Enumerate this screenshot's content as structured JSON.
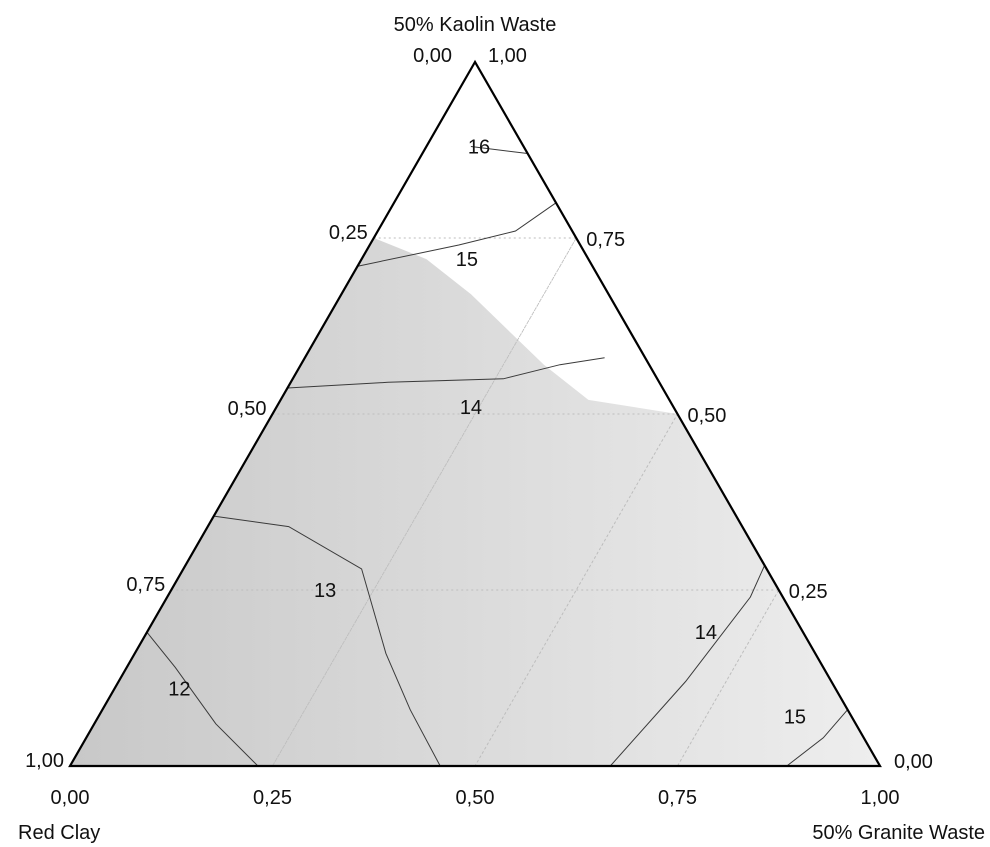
{
  "chart_data": {
    "type": "ternary-contour",
    "vertices": {
      "top": "50% Kaolin Waste",
      "left": "Red Clay",
      "right": "50% Granite Waste"
    },
    "tick_labels": [
      "0,00",
      "0,25",
      "0,50",
      "0,75",
      "1,00"
    ],
    "tick_values": [
      0,
      0.25,
      0.5,
      0.75,
      1
    ],
    "grid": true,
    "colors": {
      "shade_dark": "#c8c8c8",
      "shade_light": "#eeeeee",
      "contour": "#3a3a3a",
      "frame": "#000000",
      "grid": "#bdbdbd"
    },
    "shaded_region_boundary": [
      {
        "k": 0.75,
        "g": 0.0
      },
      {
        "k": 0.72,
        "g": 0.08
      },
      {
        "k": 0.67,
        "g": 0.16
      },
      {
        "k": 0.62,
        "g": 0.23
      },
      {
        "k": 0.57,
        "g": 0.3
      },
      {
        "k": 0.52,
        "g": 0.38
      },
      {
        "k": 0.5,
        "g": 0.5
      }
    ],
    "contours": [
      {
        "level": "16",
        "points": [
          {
            "k": 0.88,
            "g": 0.055
          },
          {
            "k": 0.87,
            "g": 0.13
          }
        ]
      },
      {
        "level": "15",
        "points": [
          {
            "k": 0.71,
            "g": 0.0
          },
          {
            "k": 0.74,
            "g": 0.11
          },
          {
            "k": 0.76,
            "g": 0.17
          },
          {
            "k": 0.8,
            "g": 0.2
          }
        ]
      },
      {
        "level": "14",
        "points": [
          {
            "k": 0.537,
            "g": 0.0
          },
          {
            "k": 0.545,
            "g": 0.12
          },
          {
            "k": 0.55,
            "g": 0.26
          },
          {
            "k": 0.57,
            "g": 0.32
          },
          {
            "k": 0.58,
            "g": 0.37
          }
        ]
      },
      {
        "level": "13",
        "points": [
          {
            "k": 0.355,
            "g": 0.0
          },
          {
            "k": 0.34,
            "g": 0.1
          },
          {
            "k": 0.28,
            "g": 0.22
          },
          {
            "k": 0.16,
            "g": 0.31
          },
          {
            "k": 0.08,
            "g": 0.38
          },
          {
            "k": 0.0,
            "g": 0.457
          }
        ]
      },
      {
        "level": "12",
        "points": [
          {
            "k": 0.19,
            "g": 0.0
          },
          {
            "k": 0.14,
            "g": 0.06
          },
          {
            "k": 0.06,
            "g": 0.15
          },
          {
            "k": 0.0,
            "g": 0.232
          }
        ]
      },
      {
        "level": "14",
        "points": [
          {
            "k": 0.0,
            "g": 0.667
          },
          {
            "k": 0.12,
            "g": 0.7
          },
          {
            "k": 0.24,
            "g": 0.72
          },
          {
            "k": 0.285,
            "g": 0.715
          }
        ]
      },
      {
        "level": "15",
        "points": [
          {
            "k": 0.0,
            "g": 0.885
          },
          {
            "k": 0.04,
            "g": 0.91
          },
          {
            "k": 0.08,
            "g": 0.92
          }
        ]
      }
    ],
    "contour_labels": [
      {
        "text": "16",
        "k": 0.88,
        "g": 0.065
      },
      {
        "text": "15",
        "k": 0.72,
        "g": 0.13
      },
      {
        "text": "14",
        "k": 0.51,
        "g": 0.24
      },
      {
        "text": "13",
        "k": 0.25,
        "g": 0.19
      },
      {
        "text": "12",
        "k": 0.11,
        "g": 0.08
      },
      {
        "text": "14",
        "k": 0.19,
        "g": 0.69
      },
      {
        "text": "15",
        "k": 0.07,
        "g": 0.86
      }
    ]
  }
}
